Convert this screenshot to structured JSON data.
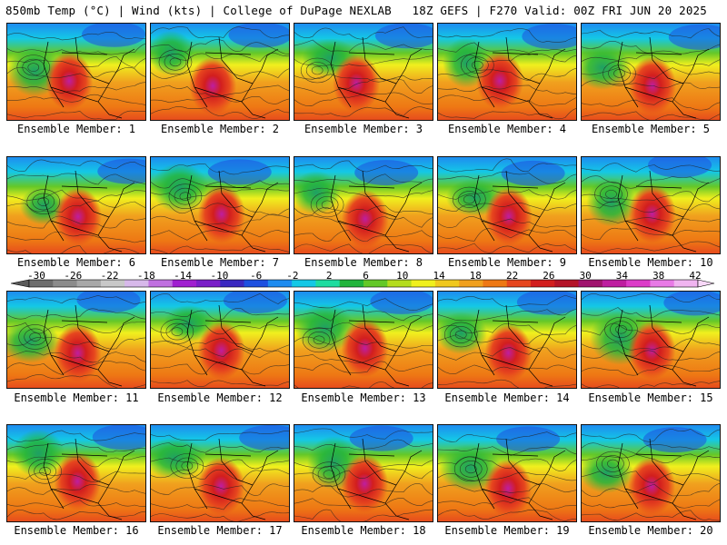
{
  "header": {
    "left": "850mb Temp (°C) | Wind (kts) | College of DuPage NEXLAB",
    "right": "18Z GEFS | F270 Valid: 00Z FRI JUN 20 2025"
  },
  "panels": [
    {
      "label": "Ensemble Member: 1"
    },
    {
      "label": "Ensemble Member: 2"
    },
    {
      "label": "Ensemble Member: 3"
    },
    {
      "label": "Ensemble Member: 4"
    },
    {
      "label": "Ensemble Member: 5"
    },
    {
      "label": "Ensemble Member: 6"
    },
    {
      "label": "Ensemble Member: 7"
    },
    {
      "label": "Ensemble Member: 8"
    },
    {
      "label": "Ensemble Member: 9"
    },
    {
      "label": "Ensemble Member: 10"
    },
    {
      "label": "Ensemble Member: 11"
    },
    {
      "label": "Ensemble Member: 12"
    },
    {
      "label": "Ensemble Member: 13"
    },
    {
      "label": "Ensemble Member: 14"
    },
    {
      "label": "Ensemble Member: 15"
    },
    {
      "label": "Ensemble Member: 16"
    },
    {
      "label": "Ensemble Member: 17"
    },
    {
      "label": "Ensemble Member: 18"
    },
    {
      "label": "Ensemble Member: 19"
    },
    {
      "label": "Ensemble Member: 20"
    }
  ],
  "colorbar": {
    "tick_labels": [
      "-30",
      "-26",
      "-22",
      "-18",
      "-14",
      "-10",
      "-6",
      "-2",
      "2",
      "6",
      "10",
      "14",
      "18",
      "22",
      "26",
      "30",
      "34",
      "38",
      "42"
    ],
    "colors": [
      "#6e6e6e",
      "#8c8c8c",
      "#a8a8a8",
      "#c8c8c8",
      "#d7b8ea",
      "#c070e0",
      "#a020d0",
      "#7a1fc8",
      "#3a28c0",
      "#1e50e0",
      "#1e8cf0",
      "#14c8e6",
      "#1edca0",
      "#22b43c",
      "#64c828",
      "#b4dc1e",
      "#f0f01e",
      "#f0c81e",
      "#f0a01e",
      "#ee7814",
      "#e6461e",
      "#d21e1e",
      "#b41428",
      "#a0146e",
      "#be1ea0",
      "#dc3cc8",
      "#e87ae6",
      "#f0b4f0"
    ]
  }
}
